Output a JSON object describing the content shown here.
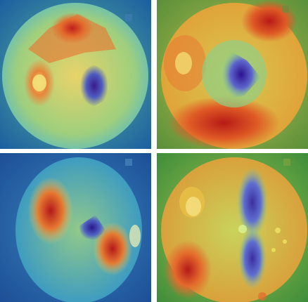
{
  "figure": {
    "panels": [
      {
        "id": "top-left",
        "description_label": ""
      },
      {
        "id": "top-right",
        "description_label": ""
      },
      {
        "id": "bottom-left",
        "description_label": ""
      },
      {
        "id": "bottom-right",
        "description_label": ""
      }
    ]
  }
}
